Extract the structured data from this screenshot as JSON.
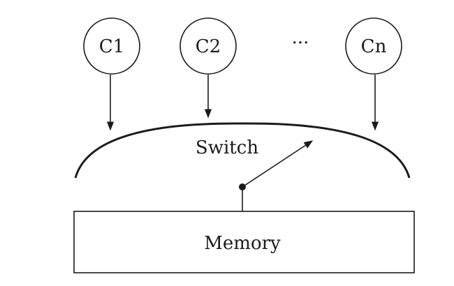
{
  "processors": [
    {
      "label": "C1"
    },
    {
      "label": "C2"
    },
    {
      "label": "Cn"
    }
  ],
  "ellipsis": "···",
  "switch": {
    "label": "Switch"
  },
  "memory": {
    "label": "Memory"
  },
  "colors": {
    "line": "#1a1a1a",
    "background": "#ffffff"
  }
}
